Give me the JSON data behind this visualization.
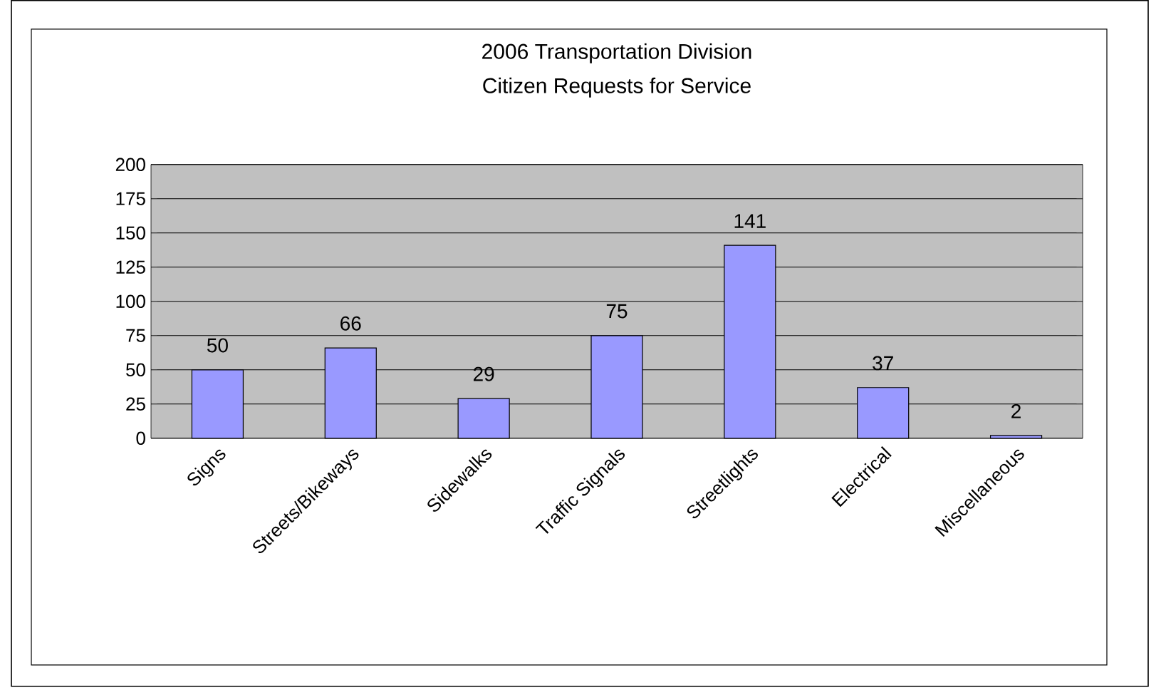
{
  "chart_data": {
    "type": "bar",
    "title": "2006 Transportation Division",
    "subtitle": "Citizen Requests for Service",
    "categories": [
      "Signs",
      "Streets/Bikeways",
      "Sidewalks",
      "Traffic Signals",
      "Streetlights",
      "Electrical",
      "Miscellaneous"
    ],
    "values": [
      50,
      66,
      29,
      75,
      141,
      37,
      2
    ],
    "color": "#9999ff",
    "data_labels": true,
    "grid": "y",
    "ylim": [
      0,
      200
    ],
    "yticks": [
      0,
      25,
      50,
      75,
      100,
      125,
      150,
      175,
      200
    ]
  }
}
